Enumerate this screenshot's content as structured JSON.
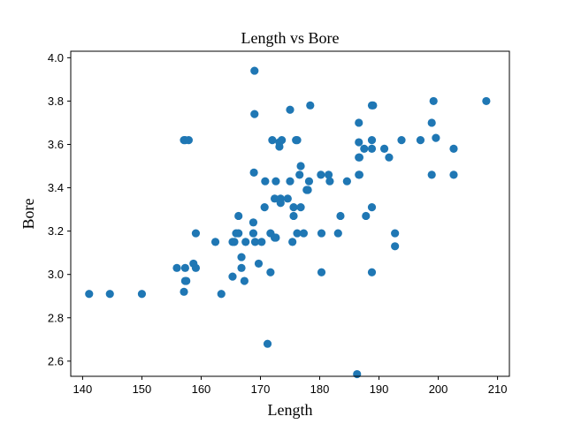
{
  "chart_data": {
    "type": "scatter",
    "title": "Length vs Bore",
    "xlabel": "Length",
    "ylabel": "Bore",
    "xlim": [
      138,
      212
    ],
    "ylim": [
      2.53,
      4.03
    ],
    "xticks": [
      140,
      150,
      160,
      170,
      180,
      190,
      200,
      210
    ],
    "yticks": [
      2.6,
      2.8,
      3.0,
      3.2,
      3.4,
      3.6,
      3.8,
      4.0
    ],
    "color": "#1f77b4",
    "grid": false,
    "points": [
      [
        141.1,
        2.91
      ],
      [
        144.6,
        2.91
      ],
      [
        150.0,
        2.91
      ],
      [
        155.9,
        3.03
      ],
      [
        157.1,
        2.92
      ],
      [
        157.3,
        2.97
      ],
      [
        157.3,
        3.03
      ],
      [
        157.5,
        2.97
      ],
      [
        158.7,
        3.05
      ],
      [
        159.1,
        3.03
      ],
      [
        159.1,
        3.19
      ],
      [
        157.1,
        3.62
      ],
      [
        157.3,
        3.62
      ],
      [
        157.9,
        3.62
      ],
      [
        162.4,
        3.15
      ],
      [
        163.4,
        2.91
      ],
      [
        165.3,
        2.99
      ],
      [
        165.3,
        3.15
      ],
      [
        165.6,
        3.15
      ],
      [
        165.9,
        3.19
      ],
      [
        166.3,
        3.27
      ],
      [
        166.3,
        3.19
      ],
      [
        166.8,
        3.08
      ],
      [
        166.8,
        3.03
      ],
      [
        167.3,
        2.97
      ],
      [
        167.5,
        3.15
      ],
      [
        168.8,
        3.19
      ],
      [
        168.8,
        3.24
      ],
      [
        168.9,
        3.47
      ],
      [
        169.0,
        3.74
      ],
      [
        169.0,
        3.94
      ],
      [
        169.1,
        3.15
      ],
      [
        169.7,
        3.05
      ],
      [
        170.2,
        3.15
      ],
      [
        170.7,
        3.31
      ],
      [
        170.8,
        3.43
      ],
      [
        171.2,
        2.68
      ],
      [
        171.7,
        3.01
      ],
      [
        171.7,
        3.19
      ],
      [
        172.0,
        3.62
      ],
      [
        172.4,
        3.35
      ],
      [
        172.4,
        3.17
      ],
      [
        172.6,
        3.43
      ],
      [
        172.6,
        3.17
      ],
      [
        173.2,
        3.59
      ],
      [
        173.2,
        3.61
      ],
      [
        173.4,
        3.35
      ],
      [
        173.4,
        3.33
      ],
      [
        173.6,
        3.62
      ],
      [
        174.6,
        3.35
      ],
      [
        175.0,
        3.76
      ],
      [
        175.0,
        3.43
      ],
      [
        175.4,
        3.15
      ],
      [
        175.6,
        3.27
      ],
      [
        175.6,
        3.31
      ],
      [
        176.0,
        3.62
      ],
      [
        176.2,
        3.62
      ],
      [
        176.2,
        3.19
      ],
      [
        176.6,
        3.46
      ],
      [
        176.8,
        3.31
      ],
      [
        176.8,
        3.5
      ],
      [
        177.3,
        3.19
      ],
      [
        177.8,
        3.39
      ],
      [
        178.0,
        3.39
      ],
      [
        178.2,
        3.43
      ],
      [
        178.4,
        3.78
      ],
      [
        180.2,
        3.46
      ],
      [
        180.3,
        3.01
      ],
      [
        180.3,
        3.19
      ],
      [
        181.5,
        3.46
      ],
      [
        181.7,
        3.43
      ],
      [
        183.1,
        3.19
      ],
      [
        183.5,
        3.27
      ],
      [
        184.6,
        3.43
      ],
      [
        186.3,
        2.54
      ],
      [
        186.6,
        3.7
      ],
      [
        186.6,
        3.61
      ],
      [
        186.6,
        3.54
      ],
      [
        186.6,
        3.46
      ],
      [
        186.7,
        3.46
      ],
      [
        186.7,
        3.54
      ],
      [
        187.5,
        3.58
      ],
      [
        187.8,
        3.27
      ],
      [
        188.8,
        3.01
      ],
      [
        188.8,
        3.58
      ],
      [
        188.8,
        3.31
      ],
      [
        188.8,
        3.62
      ],
      [
        188.8,
        3.78
      ],
      [
        189.0,
        3.78
      ],
      [
        190.9,
        3.58
      ],
      [
        191.7,
        3.54
      ],
      [
        192.7,
        3.19
      ],
      [
        192.7,
        3.13
      ],
      [
        193.8,
        3.62
      ],
      [
        197.0,
        3.62
      ],
      [
        198.9,
        3.46
      ],
      [
        198.9,
        3.7
      ],
      [
        199.2,
        3.8
      ],
      [
        199.6,
        3.63
      ],
      [
        202.6,
        3.58
      ],
      [
        202.6,
        3.46
      ],
      [
        208.1,
        3.8
      ]
    ]
  }
}
